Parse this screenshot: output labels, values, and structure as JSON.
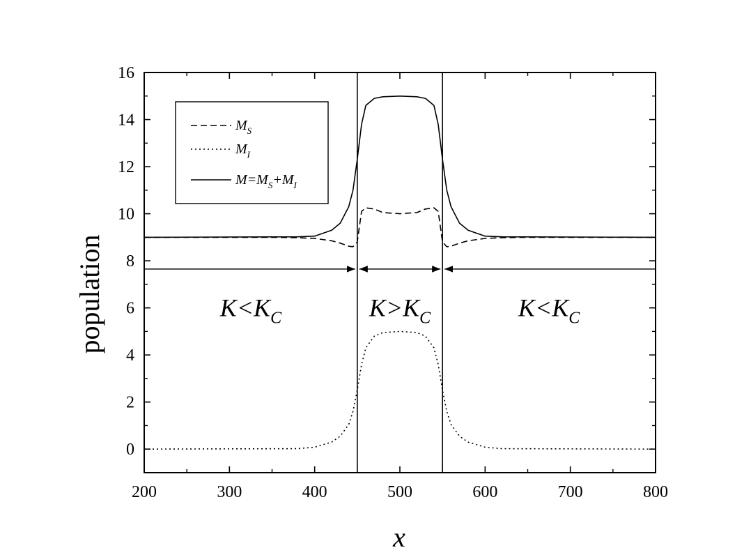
{
  "chart_data": {
    "type": "line",
    "xlabel": "x",
    "ylabel": "population",
    "xlim": [
      200,
      800
    ],
    "ylim": [
      -1,
      16
    ],
    "x_ticks": [
      200,
      300,
      400,
      500,
      600,
      700,
      800
    ],
    "y_ticks": [
      0,
      2,
      4,
      6,
      8,
      10,
      12,
      14,
      16
    ],
    "grid": false,
    "legend_position": "top-left",
    "legend": [
      {
        "main": "M",
        "sub": "S",
        "style": "dashed"
      },
      {
        "main": "M",
        "sub": "I",
        "style": "dotted"
      },
      {
        "main": "M",
        "sub": "",
        "style": "solid",
        "rest": [
          [
            "=M",
            "S"
          ],
          [
            "+M",
            "I"
          ]
        ]
      }
    ],
    "series": [
      {
        "style": "dashed",
        "x": [
          200,
          350,
          380,
          400,
          420,
          430,
          440,
          445,
          450,
          455,
          460,
          470,
          480,
          500,
          520,
          530,
          540,
          545,
          550,
          555,
          560,
          570,
          580,
          600,
          620,
          650,
          800
        ],
        "y": [
          9.0,
          9.0,
          8.98,
          8.95,
          8.85,
          8.75,
          8.62,
          8.6,
          8.8,
          10.1,
          10.25,
          10.2,
          10.05,
          10.0,
          10.05,
          10.2,
          10.25,
          10.1,
          8.8,
          8.6,
          8.62,
          8.75,
          8.85,
          8.95,
          8.98,
          9.0,
          9.0
        ]
      },
      {
        "style": "dotted",
        "x": [
          200,
          380,
          400,
          420,
          430,
          440,
          445,
          450,
          455,
          460,
          470,
          480,
          500,
          520,
          530,
          540,
          545,
          550,
          555,
          560,
          570,
          580,
          600,
          620,
          800
        ],
        "y": [
          0.0,
          0.02,
          0.08,
          0.3,
          0.55,
          1.05,
          1.6,
          2.5,
          3.6,
          4.3,
          4.8,
          4.95,
          5.0,
          4.95,
          4.8,
          4.3,
          3.6,
          2.5,
          1.6,
          1.05,
          0.55,
          0.3,
          0.08,
          0.02,
          0.0
        ]
      },
      {
        "style": "solid",
        "x": [
          200,
          380,
          400,
          420,
          430,
          440,
          445,
          450,
          455,
          460,
          470,
          480,
          500,
          520,
          530,
          540,
          545,
          550,
          555,
          560,
          570,
          580,
          600,
          620,
          800
        ],
        "y": [
          9.0,
          9.02,
          9.05,
          9.3,
          9.6,
          10.3,
          11.0,
          12.3,
          13.8,
          14.6,
          14.9,
          14.97,
          15.0,
          14.97,
          14.9,
          14.6,
          13.8,
          12.3,
          11.0,
          10.3,
          9.6,
          9.3,
          9.05,
          9.02,
          9.0
        ]
      }
    ],
    "vertical_lines": [
      450,
      550
    ],
    "arrows": [
      {
        "from": 450,
        "to": 200,
        "y": 7.65
      },
      {
        "from": 450,
        "to": 550,
        "y": 7.65
      },
      {
        "from": 550,
        "to": 800,
        "y": 7.65
      }
    ],
    "annotations": [
      {
        "main": "K<K",
        "sub": "C",
        "x": 325,
        "y": 6.0
      },
      {
        "main": "K>K",
        "sub": "C",
        "x": 500,
        "y": 6.0
      },
      {
        "main": "K<K",
        "sub": "C",
        "x": 675,
        "y": 6.0
      }
    ]
  }
}
